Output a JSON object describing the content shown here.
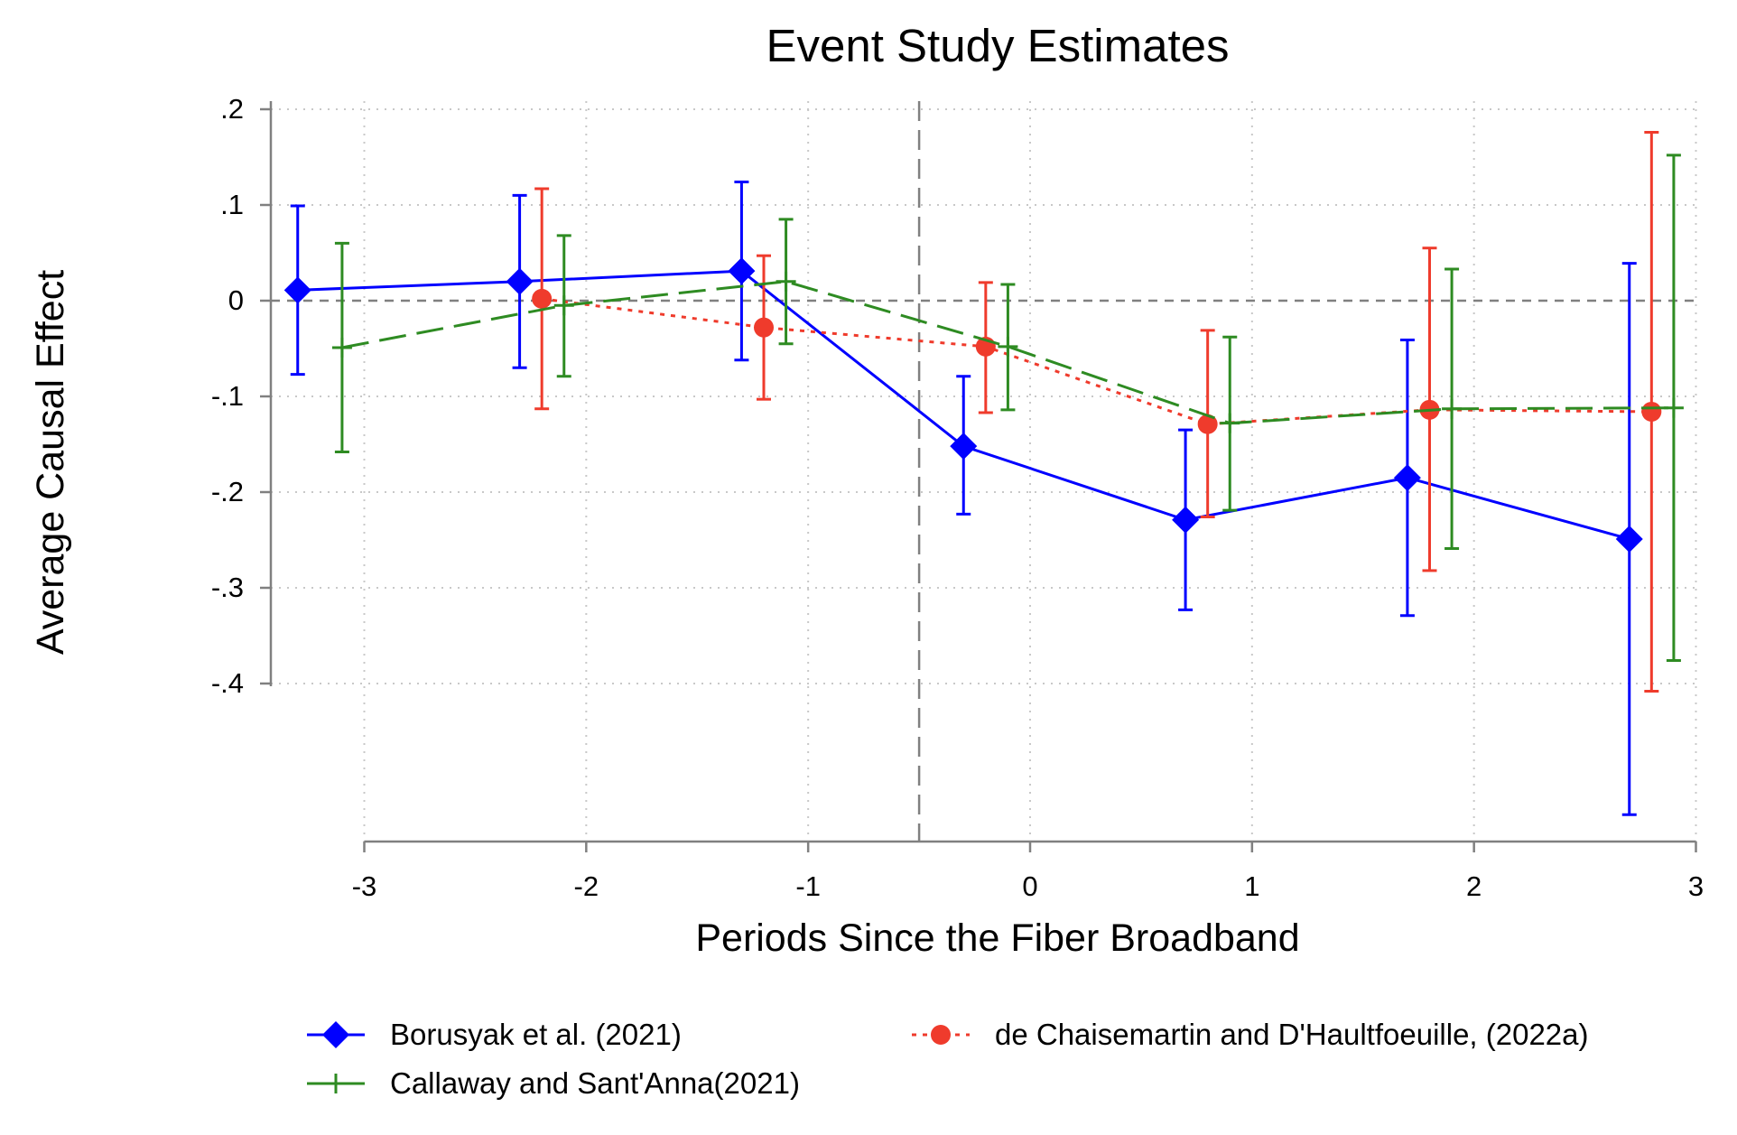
{
  "chart_data": {
    "type": "line",
    "title": "Event Study Estimates",
    "xlabel": "Periods Since the Fiber Broadband",
    "ylabel": "Average Causal Effect",
    "xlim": [
      -3.7,
      3
    ],
    "ylim": [
      -0.57,
      0.2
    ],
    "x_ticks": [
      -3,
      -2,
      -1,
      0,
      1,
      2,
      3
    ],
    "x_tick_labels": [
      "-3",
      "-2",
      "-1",
      "0",
      "1",
      "2",
      "3"
    ],
    "y_ticks": [
      0.2,
      0.1,
      0,
      -0.1,
      -0.2,
      -0.3,
      -0.4
    ],
    "y_tick_labels": [
      ".2",
      ".1",
      "0",
      "-.1",
      "-.2",
      "-.3",
      "-.4"
    ],
    "grid": true,
    "reference_lines": {
      "horizontal": 0,
      "vertical": -0.5
    },
    "legend_position": "bottom",
    "series": [
      {
        "name": "Borusyak et al. (2021)",
        "color": "#0000ff",
        "line_style": "solid",
        "marker": "diamond",
        "x": [
          -3.3,
          -2.3,
          -1.3,
          -0.3,
          0.7,
          1.7,
          2.7
        ],
        "y": [
          0.011,
          0.02,
          0.031,
          -0.152,
          -0.229,
          -0.185,
          -0.249
        ],
        "ci_low": [
          -0.077,
          -0.07,
          -0.062,
          -0.223,
          -0.323,
          -0.329,
          -0.537
        ],
        "ci_high": [
          0.099,
          0.11,
          0.124,
          -0.079,
          -0.135,
          -0.041,
          0.039
        ]
      },
      {
        "name": "de Chaisemartin and D'Haultfoeuille, (2022a)",
        "color": "#ef3b2c",
        "line_style": "dotted",
        "marker": "circle",
        "x": [
          -2.2,
          -1.2,
          -0.2,
          0.8,
          1.8,
          2.8
        ],
        "y": [
          0.002,
          -0.028,
          -0.048,
          -0.129,
          -0.114,
          -0.116
        ],
        "ci_low": [
          -0.113,
          -0.103,
          -0.117,
          -0.226,
          -0.282,
          -0.408
        ],
        "ci_high": [
          0.117,
          0.047,
          0.019,
          -0.031,
          0.055,
          0.176
        ]
      },
      {
        "name": "Callaway and Sant'Anna(2021)",
        "color": "#2e8b22",
        "line_style": "dashed",
        "marker": "plus",
        "x": [
          -3.1,
          -2.1,
          -1.1,
          -0.1,
          0.9,
          1.9,
          2.9
        ],
        "y": [
          -0.049,
          -0.005,
          0.02,
          -0.048,
          -0.128,
          -0.113,
          -0.112
        ],
        "ci_low": [
          -0.158,
          -0.079,
          -0.045,
          -0.114,
          -0.219,
          -0.259,
          -0.376
        ],
        "ci_high": [
          0.06,
          0.068,
          0.085,
          0.017,
          -0.038,
          0.033,
          0.152
        ]
      }
    ]
  }
}
